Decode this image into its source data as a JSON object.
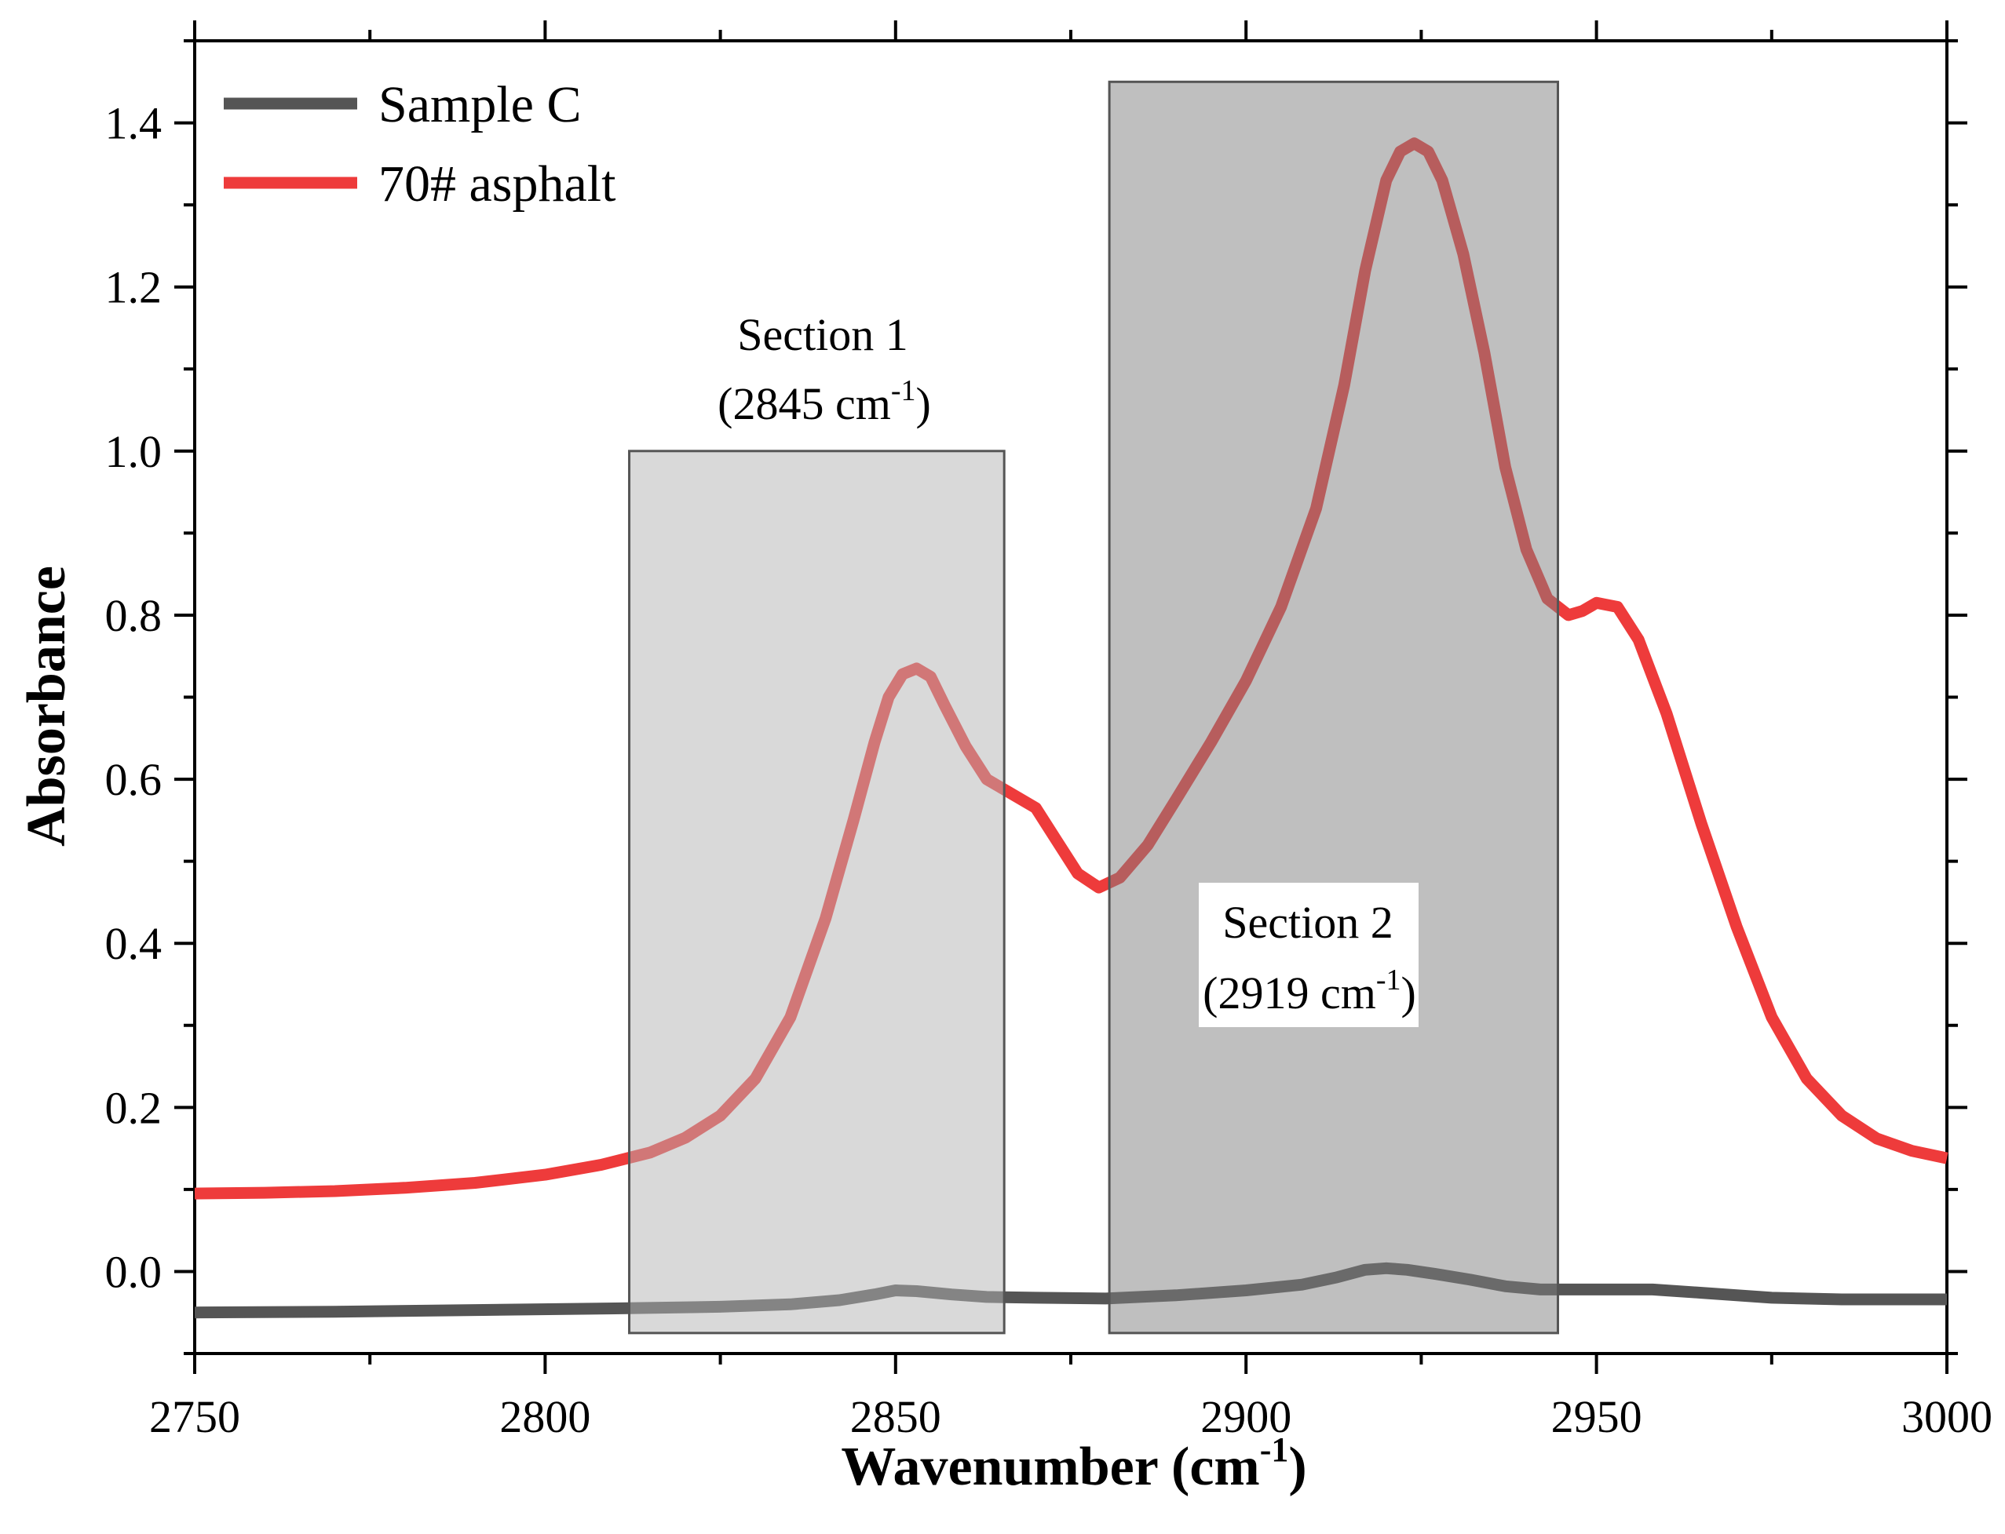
{
  "chart_data": {
    "type": "line",
    "title": "",
    "xlabel_main": "Wavenumber (cm",
    "xlabel_sup": "-1",
    "xlabel_end": ")",
    "ylabel": "Absorbance",
    "xlim": [
      2750,
      3000
    ],
    "ylim": [
      -0.1,
      1.5
    ],
    "x_ticks": [
      2750,
      2800,
      2850,
      2900,
      2950,
      3000
    ],
    "x_tick_labels": [
      "2750",
      "2800",
      "2850",
      "2900",
      "2950",
      "3000"
    ],
    "y_ticks": [
      0.0,
      0.2,
      0.4,
      0.6,
      0.8,
      1.0,
      1.2,
      1.4
    ],
    "y_tick_labels": [
      "0.0",
      "0.2",
      "0.4",
      "0.6",
      "0.8",
      "1.0",
      "1.2",
      "1.4"
    ],
    "legend_position": "top-left",
    "series": [
      {
        "name": "Sample C",
        "color": "#555555",
        "x": [
          2750,
          2770,
          2790,
          2810,
          2825,
          2835,
          2842,
          2847,
          2850,
          2853,
          2858,
          2863,
          2870,
          2880,
          2890,
          2900,
          2908,
          2913,
          2917,
          2920,
          2923,
          2927,
          2932,
          2937,
          2942,
          2950,
          2958,
          2965,
          2975,
          2985,
          3000
        ],
        "y": [
          -0.05,
          -0.049,
          -0.047,
          -0.045,
          -0.043,
          -0.04,
          -0.035,
          -0.028,
          -0.023,
          -0.024,
          -0.028,
          -0.031,
          -0.032,
          -0.033,
          -0.029,
          -0.023,
          -0.016,
          -0.007,
          0.002,
          0.004,
          0.002,
          -0.003,
          -0.01,
          -0.018,
          -0.022,
          -0.022,
          -0.022,
          -0.026,
          -0.032,
          -0.034,
          -0.034
        ]
      },
      {
        "name": "70# asphalt",
        "color": "#ee3b3b",
        "x": [
          2750,
          2760,
          2770,
          2780,
          2790,
          2800,
          2808,
          2815,
          2820,
          2825,
          2830,
          2835,
          2840,
          2844,
          2847,
          2849,
          2851,
          2853,
          2855,
          2857,
          2860,
          2863,
          2866,
          2870,
          2873,
          2876,
          2879,
          2882,
          2886,
          2890,
          2895,
          2900,
          2905,
          2910,
          2914,
          2917,
          2920,
          2922,
          2924,
          2926,
          2928,
          2931,
          2934,
          2937,
          2940,
          2943,
          2946,
          2948,
          2950,
          2953,
          2956,
          2960,
          2965,
          2970,
          2975,
          2980,
          2985,
          2990,
          2995,
          3000
        ],
        "y": [
          0.095,
          0.096,
          0.098,
          0.102,
          0.108,
          0.118,
          0.13,
          0.145,
          0.163,
          0.19,
          0.235,
          0.31,
          0.43,
          0.55,
          0.645,
          0.7,
          0.728,
          0.735,
          0.725,
          0.69,
          0.64,
          0.6,
          0.585,
          0.565,
          0.525,
          0.485,
          0.468,
          0.48,
          0.52,
          0.575,
          0.645,
          0.72,
          0.81,
          0.93,
          1.08,
          1.22,
          1.33,
          1.365,
          1.375,
          1.365,
          1.33,
          1.24,
          1.12,
          0.98,
          0.88,
          0.82,
          0.8,
          0.805,
          0.815,
          0.81,
          0.77,
          0.68,
          0.545,
          0.42,
          0.31,
          0.235,
          0.19,
          0.162,
          0.147,
          0.138
        ]
      }
    ],
    "shaded_regions": [
      {
        "label": "Section 1",
        "sublabel_main": "(2845 cm",
        "sublabel_sup": "-1",
        "sublabel_end": ")",
        "x_range": [
          2812,
          2865.5
        ],
        "y_range": [
          -0.075,
          1.0
        ],
        "shade": "light"
      },
      {
        "label": "Section 2",
        "sublabel_main": "(2919 cm",
        "sublabel_sup": "-1",
        "sublabel_end": ")",
        "x_range": [
          2880.5,
          2944.5
        ],
        "y_range": [
          -0.075,
          1.45
        ],
        "shade": "dark"
      }
    ]
  }
}
